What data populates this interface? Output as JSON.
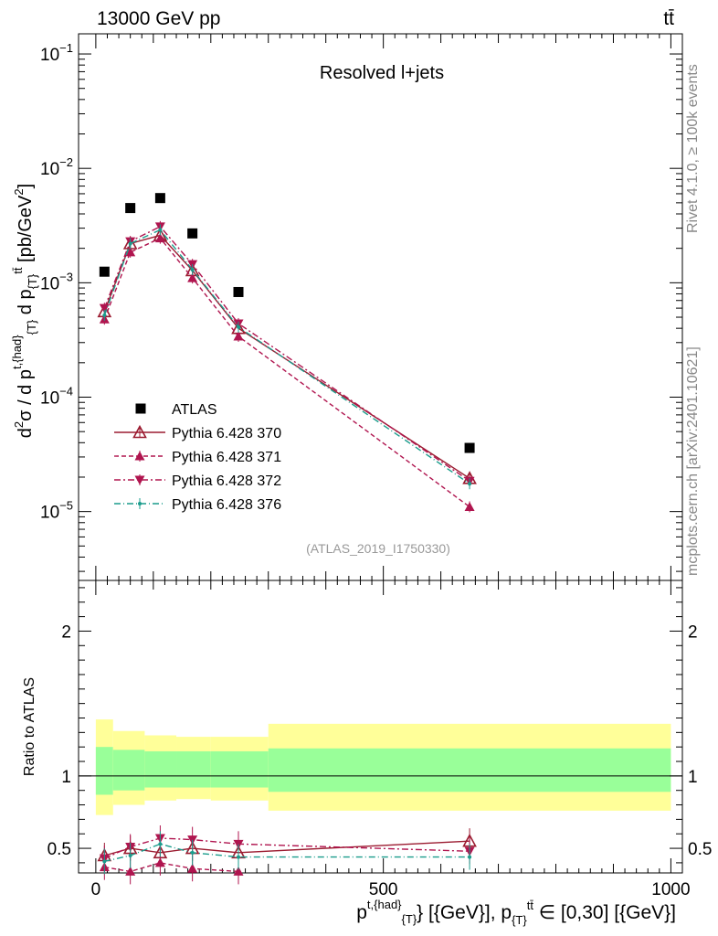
{
  "header": {
    "left": "13000 GeV pp",
    "right": "tt̄"
  },
  "side_labels": {
    "rivet": "Rivet 4.1.0, ≥ 100k events",
    "mcplots": "mcplots.cern.ch [arXiv:2401.10621]"
  },
  "colors": {
    "atlas": "#000000",
    "p370": "#9b1b30",
    "p371": "#b0154f",
    "p372": "#b0154f",
    "p376": "#1a9c8c",
    "band_stat": "#99ff99",
    "band_total": "#ffff99"
  },
  "chart_data": [
    {
      "type": "scatter",
      "title": "Resolved l+jets",
      "watermark": "(ATLAS_2019_I1750330)",
      "ylabel": "d²σ / d p^{t,{had}}_{T} d p_{T}^{tt̄} [pb/GeV²]",
      "yscale": "log",
      "ylim": [
        2.5e-06,
        0.15
      ],
      "xlim": [
        -30,
        1020
      ],
      "yticks": [
        {
          "v": 0.1,
          "m": "10",
          "e": "−1"
        },
        {
          "v": 0.01,
          "m": "10",
          "e": "−2"
        },
        {
          "v": 0.001,
          "m": "10",
          "e": "−3"
        },
        {
          "v": 0.0001,
          "m": "10",
          "e": "−4"
        },
        {
          "v": 1e-05,
          "m": "10",
          "e": "−5"
        }
      ],
      "x": [
        15,
        60,
        112,
        168,
        248,
        650
      ],
      "bin_edges": [
        0,
        30,
        85,
        140,
        200,
        300,
        1000
      ],
      "series": [
        {
          "name": "ATLAS",
          "key": "atlas",
          "marker": "square",
          "values": [
            0.00125,
            0.0045,
            0.0055,
            0.0027,
            0.00083,
            3.6e-05
          ]
        },
        {
          "name": "Pythia 6.428 370",
          "key": "p370",
          "marker": "triangle-open",
          "dash": "",
          "values": [
            0.00056,
            0.0022,
            0.0026,
            0.00128,
            0.0004,
            1.95e-05
          ]
        },
        {
          "name": "Pythia 6.428 371",
          "key": "p371",
          "marker": "triangle-up",
          "dash": "5,3",
          "values": [
            0.00048,
            0.00185,
            0.00245,
            0.0011,
            0.00034,
            1.1e-05
          ]
        },
        {
          "name": "Pythia 6.428 372",
          "key": "p372",
          "marker": "triangle-down",
          "dash": "7,3,2,3",
          "values": [
            0.0006,
            0.0023,
            0.0031,
            0.00145,
            0.00044,
            1.85e-05
          ]
        },
        {
          "name": "Pythia 6.428 376",
          "key": "p376",
          "marker": "dot",
          "dash": "7,3,1,3",
          "values": [
            0.00052,
            0.0022,
            0.0029,
            0.0013,
            0.00041,
            1.75e-05
          ]
        }
      ]
    },
    {
      "type": "scatter",
      "ylabel": "Ratio to ATLAS",
      "xlabel": "p^{t,{had}}_{T} [{GeV}], p_{T}^{tt̄} ∈ [0,30] [{GeV}]",
      "ylim": [
        0.33,
        2.35
      ],
      "xlim": [
        -30,
        1020
      ],
      "yticks": [
        "0.5",
        "1",
        "2"
      ],
      "xticks": [
        "0",
        "500",
        "1000"
      ],
      "bands": {
        "stat": [
          [
            0.87,
            1.2
          ],
          [
            0.9,
            1.18
          ],
          [
            0.92,
            1.17
          ],
          [
            0.92,
            1.17
          ],
          [
            0.92,
            1.17
          ],
          [
            0.89,
            1.19
          ]
        ],
        "total": [
          [
            0.73,
            1.39
          ],
          [
            0.8,
            1.31
          ],
          [
            0.83,
            1.28
          ],
          [
            0.84,
            1.27
          ],
          [
            0.83,
            1.27
          ],
          [
            0.76,
            1.36
          ]
        ]
      },
      "series": [
        {
          "key": "p370",
          "marker": "triangle-open",
          "dash": "",
          "values": [
            0.45,
            0.5,
            0.47,
            0.5,
            0.47,
            0.55
          ]
        },
        {
          "key": "p371",
          "marker": "triangle-up",
          "dash": "5,3",
          "values": [
            0.37,
            0.34,
            0.4,
            0.36,
            0.34,
            null
          ]
        },
        {
          "key": "p372",
          "marker": "triangle-down",
          "dash": "7,3,2,3",
          "values": [
            0.43,
            0.51,
            0.57,
            0.56,
            0.53,
            0.48
          ]
        },
        {
          "key": "p376",
          "marker": "dot",
          "dash": "7,3,1,3",
          "values": [
            0.41,
            0.45,
            0.53,
            0.47,
            0.44,
            0.44
          ]
        }
      ]
    }
  ]
}
